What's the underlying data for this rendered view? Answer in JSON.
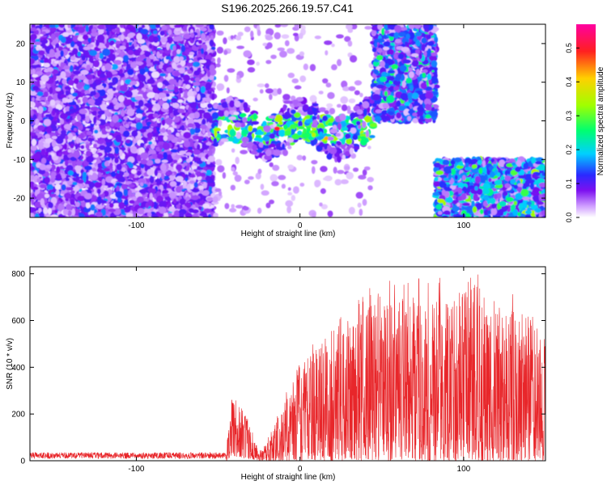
{
  "title": "S196.2025.266.19.57.C41",
  "chart_data": [
    {
      "type": "heatmap",
      "xlabel": "Height of straight line (km)",
      "ylabel": "Frequency (Hz)",
      "xlim": [
        -165,
        150
      ],
      "ylim": [
        -25,
        25
      ],
      "xticks": [
        -100,
        0,
        100
      ],
      "yticks": [
        -20,
        -10,
        0,
        10,
        20
      ],
      "colorbar": {
        "label": "Normalized spectral amplitude",
        "range": [
          0,
          0.57
        ],
        "ticks": [
          0.0,
          0.1,
          0.2,
          0.3,
          0.4,
          0.5
        ],
        "colormap": [
          "#ffffff",
          "#ce9cff",
          "#7c10f0",
          "#2a2aff",
          "#00d0ff",
          "#00ff70",
          "#a0ff00",
          "#ffd000",
          "#ff2020",
          "#ff00a0"
        ]
      },
      "regions": [
        {
          "x": [
            -165,
            -53
          ],
          "y": [
            -25,
            25
          ],
          "amplitude": 0.06
        },
        {
          "x": [
            -53,
            45
          ],
          "freq_center": -2,
          "freq_width": 5,
          "amplitude": 0.25,
          "peak": 0.5
        },
        {
          "x": [
            45,
            83
          ],
          "y": [
            0,
            25
          ],
          "amplitude": 0.1
        },
        {
          "x": [
            83,
            150
          ],
          "y": [
            -25,
            -10
          ],
          "amplitude": 0.12
        }
      ]
    },
    {
      "type": "line",
      "xlabel": "Height of straight line (km)",
      "ylabel": "SNR (10 * v/v)",
      "xlim": [
        -165,
        150
      ],
      "ylim": [
        0,
        830
      ],
      "xticks": [
        -100,
        0,
        100
      ],
      "yticks": [
        0,
        200,
        400,
        600,
        800
      ],
      "series": [
        {
          "color": "#e8262a",
          "envelope": [
            {
              "x": -165,
              "lo": 0,
              "hi": 40
            },
            {
              "x": -45,
              "lo": 0,
              "hi": 40
            },
            {
              "x": -42,
              "lo": 20,
              "hi": 300
            },
            {
              "x": -32,
              "lo": 10,
              "hi": 200
            },
            {
              "x": -25,
              "lo": 0,
              "hi": 40
            },
            {
              "x": -18,
              "lo": 0,
              "hi": 120
            },
            {
              "x": 0,
              "lo": 0,
              "hi": 450
            },
            {
              "x": 30,
              "lo": 0,
              "hi": 680
            },
            {
              "x": 45,
              "lo": 0,
              "hi": 770
            },
            {
              "x": 100,
              "lo": 0,
              "hi": 800
            },
            {
              "x": 105,
              "lo": 0,
              "hi": 830
            },
            {
              "x": 130,
              "lo": 0,
              "hi": 720
            },
            {
              "x": 150,
              "lo": 0,
              "hi": 560
            }
          ]
        }
      ]
    }
  ]
}
